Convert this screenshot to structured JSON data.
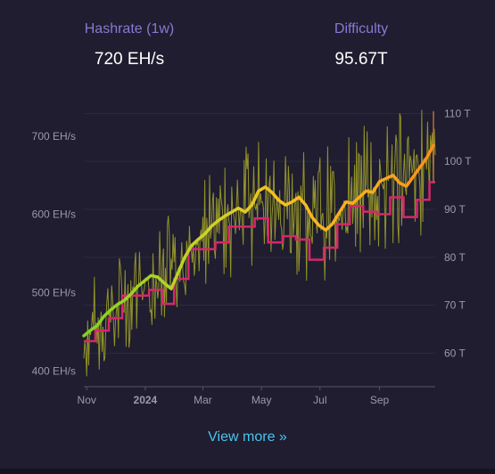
{
  "stats": {
    "hashrate": {
      "label": "Hashrate (1w)",
      "value": "720 EH/s"
    },
    "difficulty": {
      "label": "Difficulty",
      "value": "95.67T"
    }
  },
  "view_more": "View more »",
  "colors": {
    "background": "#1f1d2f",
    "label_accent": "#8b78d4",
    "link": "#4ac3f0",
    "difficulty_line": "#d6286a",
    "hashrate_daily": "#a6a72a",
    "hashrate_avg_start": "#7ed321",
    "hashrate_avg_mid": "#f5c020",
    "hashrate_avg_end": "#ff8c1a"
  },
  "chart_data": {
    "type": "line",
    "x_ticks": [
      {
        "label": "Nov",
        "date": "2023-11-01"
      },
      {
        "label": "2024",
        "date": "2024-01-01",
        "bold": true
      },
      {
        "label": "Mar",
        "date": "2024-03-01"
      },
      {
        "label": "May",
        "date": "2024-05-01"
      },
      {
        "label": "Jul",
        "date": "2024-07-01"
      },
      {
        "label": "Sep",
        "date": "2024-09-01"
      }
    ],
    "xlim": [
      "2023-10-29",
      "2024-10-29"
    ],
    "y_left": {
      "ticks": [
        "400 EH/s",
        "500 EH/s",
        "600 EH/s",
        "700 EH/s"
      ],
      "tick_values": [
        400,
        500,
        600,
        700
      ],
      "ylim": [
        380,
        735
      ]
    },
    "y_right": {
      "ticks": [
        "60 T",
        "70 T",
        "80 T",
        "90 T",
        "100 T",
        "110 T"
      ],
      "tick_values": [
        60,
        70,
        80,
        90,
        100,
        110
      ],
      "ylim": [
        53,
        111
      ]
    },
    "series": [
      {
        "type": "line",
        "axis": "left",
        "points": [
          [
            "2023-10-29",
            445
          ],
          [
            "2023-11-05",
            452
          ],
          [
            "2023-11-12",
            458
          ],
          [
            "2023-11-19",
            470
          ],
          [
            "2023-11-26",
            478
          ],
          [
            "2023-12-03",
            485
          ],
          [
            "2023-12-10",
            490
          ],
          [
            "2023-12-17",
            498
          ],
          [
            "2023-12-24",
            508
          ],
          [
            "2023-12-31",
            515
          ],
          [
            "2024-01-07",
            522
          ],
          [
            "2024-01-14",
            520
          ],
          [
            "2024-01-21",
            512
          ],
          [
            "2024-01-28",
            505
          ],
          [
            "2024-02-04",
            525
          ],
          [
            "2024-02-11",
            545
          ],
          [
            "2024-02-18",
            560
          ],
          [
            "2024-02-25",
            568
          ],
          [
            "2024-03-03",
            575
          ],
          [
            "2024-03-10",
            585
          ],
          [
            "2024-03-17",
            592
          ],
          [
            "2024-03-24",
            598
          ],
          [
            "2024-03-31",
            603
          ],
          [
            "2024-04-07",
            608
          ],
          [
            "2024-04-14",
            603
          ],
          [
            "2024-04-21",
            612
          ],
          [
            "2024-04-28",
            630
          ],
          [
            "2024-05-05",
            635
          ],
          [
            "2024-05-12",
            628
          ],
          [
            "2024-05-19",
            618
          ],
          [
            "2024-05-26",
            612
          ],
          [
            "2024-06-02",
            616
          ],
          [
            "2024-06-09",
            622
          ],
          [
            "2024-06-16",
            612
          ],
          [
            "2024-06-23",
            596
          ],
          [
            "2024-06-30",
            586
          ],
          [
            "2024-07-07",
            580
          ],
          [
            "2024-07-14",
            588
          ],
          [
            "2024-07-21",
            602
          ],
          [
            "2024-07-28",
            616
          ],
          [
            "2024-08-04",
            614
          ],
          [
            "2024-08-11",
            622
          ],
          [
            "2024-08-18",
            630
          ],
          [
            "2024-08-25",
            628
          ],
          [
            "2024-09-01",
            642
          ],
          [
            "2024-09-08",
            646
          ],
          [
            "2024-09-15",
            650
          ],
          [
            "2024-09-22",
            640
          ],
          [
            "2024-09-29",
            636
          ],
          [
            "2024-10-06",
            648
          ],
          [
            "2024-10-13",
            660
          ],
          [
            "2024-10-20",
            672
          ],
          [
            "2024-10-27",
            688
          ]
        ]
      },
      {
        "type": "step",
        "axis": "right",
        "points": [
          [
            "2023-10-29",
            62.5
          ],
          [
            "2023-11-10",
            64.7
          ],
          [
            "2023-11-24",
            67.3
          ],
          [
            "2023-12-08",
            72.0
          ],
          [
            "2024-01-05",
            73.2
          ],
          [
            "2024-01-19",
            70.3
          ],
          [
            "2024-01-31",
            75.5
          ],
          [
            "2024-02-15",
            81.7
          ],
          [
            "2024-03-14",
            83.1
          ],
          [
            "2024-03-28",
            86.4
          ],
          [
            "2024-04-24",
            88.1
          ],
          [
            "2024-05-08",
            83.1
          ],
          [
            "2024-05-23",
            84.4
          ],
          [
            "2024-06-06",
            83.7
          ],
          [
            "2024-06-20",
            79.5
          ],
          [
            "2024-07-05",
            82.0
          ],
          [
            "2024-07-19",
            86.9
          ],
          [
            "2024-08-01",
            90.7
          ],
          [
            "2024-08-15",
            89.5
          ],
          [
            "2024-08-29",
            89.0
          ],
          [
            "2024-09-12",
            92.5
          ],
          [
            "2024-09-26",
            88.4
          ],
          [
            "2024-10-10",
            92.0
          ],
          [
            "2024-10-23",
            95.67
          ]
        ]
      }
    ],
    "bands": [
      {
        "type": "line",
        "axis": "left",
        "points": [
          [
            "2023-10-29",
            372
          ],
          [
            "2023-11-05",
            392
          ],
          [
            "2023-12-03",
            418
          ],
          [
            "2024-01-07",
            450
          ],
          [
            "2024-02-04",
            482
          ],
          [
            "2024-03-03",
            505
          ],
          [
            "2024-04-07",
            520
          ],
          [
            "2024-05-05",
            535
          ],
          [
            "2024-06-02",
            522
          ],
          [
            "2024-07-07",
            506
          ],
          [
            "2024-08-04",
            530
          ],
          [
            "2024-09-01",
            545
          ],
          [
            "2024-10-06",
            560
          ],
          [
            "2024-10-29",
            572
          ]
        ]
      },
      {
        "type": "line",
        "axis": "left",
        "points": [
          [
            "2023-10-29",
            505
          ],
          [
            "2023-11-05",
            520
          ],
          [
            "2023-12-03",
            545
          ],
          [
            "2024-01-07",
            578
          ],
          [
            "2024-02-04",
            612
          ],
          [
            "2024-03-03",
            650
          ],
          [
            "2024-04-07",
            680
          ],
          [
            "2024-05-05",
            705
          ],
          [
            "2024-06-02",
            700
          ],
          [
            "2024-07-07",
            688
          ],
          [
            "2024-08-04",
            708
          ],
          [
            "2024-09-01",
            725
          ],
          [
            "2024-10-06",
            740
          ],
          [
            "2024-10-29",
            745
          ]
        ]
      }
    ]
  }
}
